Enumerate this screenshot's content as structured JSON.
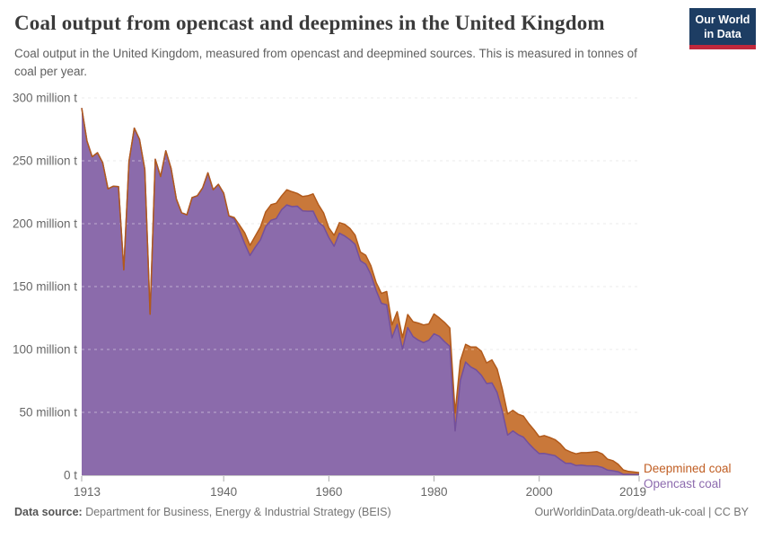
{
  "header": {
    "title": "Coal output from opencast and deepmines in the United Kingdom",
    "subtitle": "Coal output in the United Kingdom, measured from opencast and deepmined sources. This is measured in tonnes of coal per year.",
    "logo": {
      "line1": "Our World",
      "line2": "in Data",
      "bg_color": "#1d3d63",
      "accent_color": "#c0283c"
    }
  },
  "legend": {
    "items": [
      {
        "label": "Opencast coal",
        "color": "#c05e23"
      },
      {
        "label": "Deepmined coal",
        "color": "#8d6bae"
      }
    ]
  },
  "footer": {
    "data_source_label": "Data source:",
    "data_source_value": " Department for Business, Energy & Industrial Strategy (BEIS)",
    "link": "OurWorldinData.org/death-uk-coal",
    "separator": " | ",
    "license": "CC BY"
  },
  "chart_data": {
    "type": "area",
    "stacked": true,
    "title": "Coal output from opencast and deepmines in the United Kingdom",
    "ylabel": "",
    "xlabel": "",
    "unit": "tonnes of coal per year",
    "ylim": [
      0,
      300
    ],
    "xlim": [
      1913,
      2019
    ],
    "yticks": [
      0,
      50,
      100,
      150,
      200,
      250,
      300
    ],
    "ytick_suffix": " million t",
    "ytick_zero_label": "0 t",
    "xticks": [
      1913,
      1940,
      1960,
      1980,
      2000,
      2019
    ],
    "grid": "horizontal-dashed",
    "legend_position": "right-of-plot-end",
    "x": [
      1913,
      1914,
      1915,
      1916,
      1917,
      1918,
      1919,
      1920,
      1921,
      1922,
      1923,
      1924,
      1925,
      1926,
      1927,
      1928,
      1929,
      1930,
      1931,
      1932,
      1933,
      1934,
      1935,
      1936,
      1937,
      1938,
      1939,
      1940,
      1941,
      1942,
      1943,
      1944,
      1945,
      1946,
      1947,
      1948,
      1949,
      1950,
      1951,
      1952,
      1953,
      1954,
      1955,
      1956,
      1957,
      1958,
      1959,
      1960,
      1961,
      1962,
      1963,
      1964,
      1965,
      1966,
      1967,
      1968,
      1969,
      1970,
      1971,
      1972,
      1973,
      1974,
      1975,
      1976,
      1977,
      1978,
      1979,
      1980,
      1981,
      1982,
      1983,
      1984,
      1985,
      1986,
      1987,
      1988,
      1989,
      1990,
      1991,
      1992,
      1993,
      1994,
      1995,
      1996,
      1997,
      1998,
      1999,
      2000,
      2001,
      2002,
      2003,
      2004,
      2005,
      2006,
      2007,
      2008,
      2009,
      2010,
      2011,
      2012,
      2013,
      2014,
      2015,
      2016,
      2017,
      2018,
      2019
    ],
    "series": [
      {
        "name": "Deepmined coal",
        "color": "#8b6bab",
        "line_color": "#74509b",
        "values": [
          292.0,
          265.7,
          253.2,
          256.4,
          248.5,
          227.7,
          229.8,
          229.5,
          163.3,
          249.6,
          276.0,
          267.1,
          243.2,
          128.0,
          251.2,
          237.5,
          257.9,
          243.9,
          219.5,
          208.7,
          207.1,
          220.7,
          222.3,
          228.4,
          240.4,
          227.0,
          231.3,
          224.3,
          206.3,
          203.6,
          194.5,
          184.1,
          174.7,
          181.2,
          187.2,
          197.7,
          202.7,
          204.1,
          211.0,
          214.9,
          213.6,
          213.9,
          210.2,
          209.9,
          210.0,
          201.3,
          197.8,
          189.0,
          182.1,
          192.4,
          190.3,
          187.3,
          183.5,
          170.5,
          167.8,
          159.5,
          146.8,
          136.7,
          135.5,
          109.2,
          120.0,
          100.3,
          117.4,
          110.3,
          107.4,
          105.4,
          107.3,
          112.4,
          110.5,
          106.2,
          102.4,
          35.2,
          75.3,
          90.0,
          86.1,
          83.8,
          79.6,
          72.9,
          73.4,
          65.8,
          50.5,
          31.9,
          35.2,
          32.2,
          30.3,
          25.2,
          20.9,
          17.2,
          17.3,
          16.4,
          15.6,
          12.5,
          9.6,
          9.4,
          7.7,
          8.1,
          7.5,
          7.4,
          7.2,
          6.2,
          4.1,
          3.6,
          2.8,
          0.7,
          0.7,
          0.6,
          0.5
        ]
      },
      {
        "name": "Opencast coal",
        "color": "#c9783a",
        "line_color": "#b25a1b",
        "values": [
          0,
          0,
          0,
          0,
          0,
          0,
          0,
          0,
          0,
          0,
          0,
          0,
          0,
          0,
          0,
          0,
          0,
          0,
          0,
          0,
          0,
          0,
          0,
          0,
          0,
          0,
          0,
          0,
          0,
          1.3,
          4.4,
          8.6,
          8.1,
          8.9,
          10.3,
          11.7,
          12.4,
          12.2,
          11.0,
          12.1,
          11.8,
          10.2,
          11.4,
          12.3,
          13.7,
          14.0,
          10.8,
          7.7,
          8.7,
          8.4,
          9.3,
          9.0,
          7.4,
          7.0,
          7.1,
          7.1,
          6.3,
          7.9,
          10.6,
          10.4,
          10.1,
          9.1,
          10.4,
          11.8,
          13.6,
          14.1,
          13.0,
          15.8,
          14.6,
          15.3,
          14.7,
          14.3,
          15.6,
          14.1,
          15.8,
          18.1,
          19.0,
          16.4,
          18.3,
          18.7,
          17.7,
          16.8,
          16.4,
          16.3,
          16.7,
          15.9,
          15.3,
          13.4,
          14.2,
          13.6,
          12.7,
          12.5,
          10.7,
          9.0,
          9.3,
          9.8,
          10.4,
          10.9,
          11.5,
          10.7,
          8.7,
          8.0,
          5.9,
          3.5,
          2.3,
          2.0,
          1.6
        ]
      }
    ]
  }
}
